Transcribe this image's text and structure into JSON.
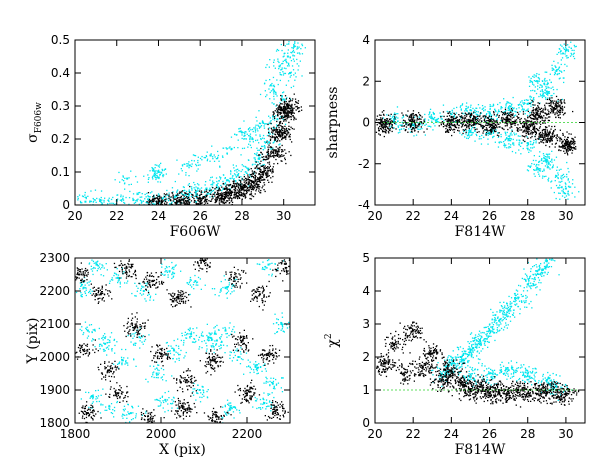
{
  "chart_data": [
    {
      "type": "scatter",
      "id": "sigma",
      "xlabel": "F606W",
      "ylabel": "σ",
      "ylabel_sub": "F606w",
      "xlim": [
        20,
        31.5
      ],
      "ylim": [
        0,
        0.5
      ],
      "xticks": [
        20,
        22,
        24,
        26,
        28,
        30
      ],
      "yticks": [
        0,
        0.1,
        0.2,
        0.3,
        0.4,
        0.5
      ],
      "series": [
        {
          "color": "#00e5ee",
          "points": [
            [
              20.5,
              0.01
            ],
            [
              21.2,
              0.012
            ],
            [
              22.0,
              0.013
            ],
            [
              22.8,
              0.015
            ],
            [
              23.5,
              0.017
            ],
            [
              24.2,
              0.02
            ],
            [
              24.8,
              0.025
            ],
            [
              25.3,
              0.03
            ],
            [
              25.8,
              0.04
            ],
            [
              26.3,
              0.05
            ],
            [
              26.8,
              0.06
            ],
            [
              27.3,
              0.075
            ],
            [
              27.8,
              0.09
            ],
            [
              28.3,
              0.11
            ],
            [
              28.8,
              0.14
            ],
            [
              29.3,
              0.19
            ],
            [
              29.7,
              0.26
            ],
            [
              30.0,
              0.32
            ],
            [
              30.3,
              0.4
            ],
            [
              30.5,
              0.48
            ],
            [
              24.0,
              0.1
            ],
            [
              25.5,
              0.12
            ],
            [
              26.5,
              0.15
            ],
            [
              27.5,
              0.17
            ],
            [
              28.5,
              0.2
            ],
            [
              29.0,
              0.25
            ],
            [
              29.5,
              0.35
            ],
            [
              30.2,
              0.45
            ],
            [
              22.5,
              0.08
            ],
            [
              23.8,
              0.09
            ],
            [
              28.0,
              0.22
            ],
            [
              29.8,
              0.42
            ]
          ]
        },
        {
          "color": "#000000",
          "points": [
            [
              24.0,
              0.01
            ],
            [
              25.0,
              0.015
            ],
            [
              26.0,
              0.02
            ],
            [
              27.0,
              0.03
            ],
            [
              27.5,
              0.04
            ],
            [
              28.0,
              0.05
            ],
            [
              28.5,
              0.07
            ],
            [
              29.0,
              0.1
            ],
            [
              29.5,
              0.16
            ],
            [
              29.8,
              0.22
            ],
            [
              30.0,
              0.28
            ],
            [
              30.2,
              0.3
            ]
          ]
        }
      ]
    },
    {
      "type": "scatter",
      "id": "sharpness",
      "xlabel": "F814W",
      "ylabel": "sharpness",
      "xlim": [
        20,
        31
      ],
      "ylim": [
        -4,
        4
      ],
      "xticks": [
        20,
        22,
        24,
        26,
        28,
        30
      ],
      "yticks": [
        -4,
        -2,
        0,
        2,
        4
      ],
      "series": [
        {
          "color": "#00e5ee",
          "points": [
            [
              21.0,
              0.1
            ],
            [
              22.0,
              -0.1
            ],
            [
              23.0,
              0.2
            ],
            [
              24.0,
              0.4
            ],
            [
              25.0,
              0.6
            ],
            [
              26.0,
              0.5
            ],
            [
              27.0,
              0.7
            ],
            [
              28.0,
              0.9
            ],
            [
              29.0,
              1.5
            ],
            [
              29.5,
              2.5
            ],
            [
              30.0,
              3.5
            ],
            [
              25.0,
              -0.4
            ],
            [
              26.0,
              -0.5
            ],
            [
              27.0,
              -0.8
            ],
            [
              28.0,
              -1.0
            ],
            [
              29.0,
              -1.8
            ],
            [
              29.5,
              -2.6
            ],
            [
              30.0,
              -3.2
            ],
            [
              28.5,
              2.0
            ],
            [
              28.5,
              -2.2
            ]
          ]
        },
        {
          "color": "#000000",
          "points": [
            [
              20.5,
              0.0
            ],
            [
              22.0,
              0.05
            ],
            [
              24.0,
              0.0
            ],
            [
              25.0,
              0.1
            ],
            [
              26.0,
              -0.1
            ],
            [
              27.0,
              0.15
            ],
            [
              28.0,
              -0.2
            ],
            [
              28.5,
              0.4
            ],
            [
              29.0,
              -0.6
            ],
            [
              29.5,
              0.8
            ],
            [
              30.0,
              -1.0
            ]
          ]
        }
      ],
      "reference_line": 0
    },
    {
      "type": "scatter",
      "id": "xy",
      "xlabel": "X (pix)",
      "ylabel": "Y (pix)",
      "xlim": [
        1800,
        2300
      ],
      "ylim": [
        1800,
        2300
      ],
      "xticks": [
        1800,
        2000,
        2200
      ],
      "yticks": [
        1800,
        1900,
        2000,
        2100,
        2200,
        2300
      ],
      "series": [
        {
          "color": "#00e5ee",
          "points": [
            [
              1820,
              2210
            ],
            [
              1850,
              2280
            ],
            [
              1900,
              2240
            ],
            [
              1960,
              2200
            ],
            [
              2020,
              2260
            ],
            [
              2080,
              2230
            ],
            [
              2150,
              2210
            ],
            [
              2250,
              2280
            ],
            [
              1830,
              2080
            ],
            [
              1870,
              2040
            ],
            [
              1910,
              1990
            ],
            [
              1950,
              2060
            ],
            [
              1990,
              1950
            ],
            [
              2030,
              2020
            ],
            [
              2070,
              2070
            ],
            [
              2110,
              2060
            ],
            [
              2130,
              2050
            ],
            [
              2150,
              2080
            ],
            [
              2180,
              2000
            ],
            [
              2220,
              1970
            ],
            [
              2260,
              1920
            ],
            [
              1840,
              1880
            ],
            [
              1880,
              1850
            ],
            [
              1930,
              1830
            ],
            [
              2010,
              1870
            ],
            [
              2090,
              1900
            ],
            [
              2160,
              1840
            ],
            [
              2240,
              1860
            ],
            [
              2280,
              2100
            ]
          ]
        },
        {
          "color": "#000000",
          "points": [
            [
              1810,
              2250
            ],
            [
              1860,
              2190
            ],
            [
              1920,
              2270
            ],
            [
              1980,
              2230
            ],
            [
              2040,
              2180
            ],
            [
              2100,
              2290
            ],
            [
              2170,
              2240
            ],
            [
              2230,
              2190
            ],
            [
              2290,
              2270
            ],
            [
              1820,
              2020
            ],
            [
              1880,
              1960
            ],
            [
              1940,
              2090
            ],
            [
              2000,
              2010
            ],
            [
              2060,
              1930
            ],
            [
              2120,
              1990
            ],
            [
              2190,
              2050
            ],
            [
              2250,
              2010
            ],
            [
              1830,
              1830
            ],
            [
              1900,
              1890
            ],
            [
              1970,
              1810
            ],
            [
              2050,
              1850
            ],
            [
              2130,
              1820
            ],
            [
              2200,
              1890
            ],
            [
              2270,
              1840
            ]
          ]
        }
      ]
    },
    {
      "type": "scatter",
      "id": "chi2",
      "xlabel": "F814W",
      "ylabel": "χ",
      "ylabel_sup": "2",
      "xlim": [
        20,
        31
      ],
      "ylim": [
        0,
        5
      ],
      "xticks": [
        20,
        22,
        24,
        26,
        28,
        30
      ],
      "yticks": [
        0,
        1,
        2,
        3,
        4,
        5
      ],
      "series": [
        {
          "color": "#00e5ee",
          "points": [
            [
              23.5,
              1.5
            ],
            [
              24.0,
              1.8
            ],
            [
              24.5,
              2.0
            ],
            [
              25.0,
              2.2
            ],
            [
              25.5,
              2.5
            ],
            [
              26.0,
              2.8
            ],
            [
              26.5,
              3.1
            ],
            [
              27.0,
              3.4
            ],
            [
              27.5,
              3.8
            ],
            [
              28.0,
              4.2
            ],
            [
              28.5,
              4.6
            ],
            [
              29.0,
              4.9
            ],
            [
              25.0,
              1.4
            ],
            [
              26.0,
              1.5
            ],
            [
              27.0,
              1.6
            ],
            [
              28.0,
              1.5
            ],
            [
              29.0,
              1.3
            ],
            [
              29.5,
              1.1
            ]
          ]
        },
        {
          "color": "#000000",
          "points": [
            [
              20.5,
              1.8
            ],
            [
              21.0,
              2.4
            ],
            [
              21.5,
              1.5
            ],
            [
              22.0,
              2.8
            ],
            [
              22.5,
              1.7
            ],
            [
              23.0,
              2.1
            ],
            [
              23.5,
              1.3
            ],
            [
              24.0,
              1.6
            ],
            [
              24.5,
              1.2
            ],
            [
              25.0,
              1.0
            ],
            [
              25.5,
              1.1
            ],
            [
              26.0,
              0.9
            ],
            [
              26.5,
              1.0
            ],
            [
              27.0,
              0.9
            ],
            [
              27.5,
              1.0
            ],
            [
              28.0,
              0.9
            ],
            [
              28.5,
              1.0
            ],
            [
              29.0,
              0.9
            ],
            [
              29.5,
              1.0
            ],
            [
              30.0,
              0.9
            ]
          ]
        }
      ],
      "reference_line": 1
    }
  ]
}
